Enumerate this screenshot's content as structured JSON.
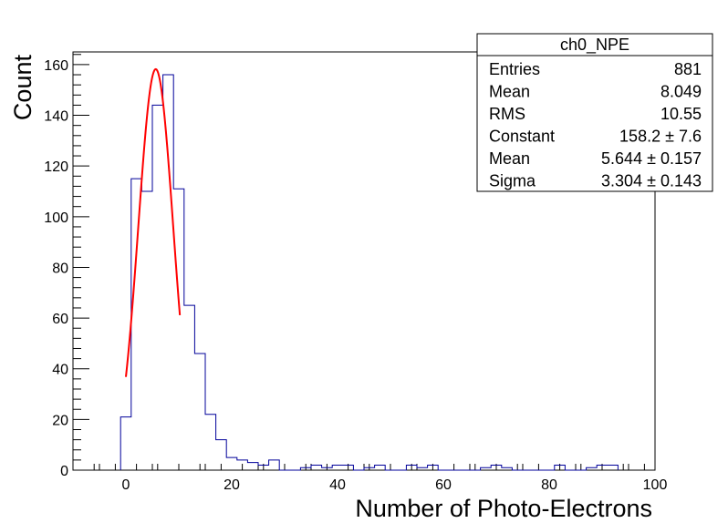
{
  "chart_data": {
    "type": "histogram",
    "xlabel": "Number of Photo-Electrons",
    "ylabel": "Count",
    "xlim": [
      -10,
      100
    ],
    "ylim": [
      0,
      165
    ],
    "x_ticks": [
      "0",
      "20",
      "40",
      "60",
      "80",
      "100"
    ],
    "y_ticks": [
      "0",
      "20",
      "40",
      "60",
      "80",
      "100",
      "120",
      "140",
      "160"
    ],
    "bin_width": 2,
    "bins": [
      {
        "x0": -1,
        "count": 21
      },
      {
        "x0": 1,
        "count": 115
      },
      {
        "x0": 3,
        "count": 110
      },
      {
        "x0": 5,
        "count": 144
      },
      {
        "x0": 7,
        "count": 156
      },
      {
        "x0": 9,
        "count": 111
      },
      {
        "x0": 11,
        "count": 65
      },
      {
        "x0": 13,
        "count": 46
      },
      {
        "x0": 15,
        "count": 22
      },
      {
        "x0": 17,
        "count": 12
      },
      {
        "x0": 19,
        "count": 5
      },
      {
        "x0": 21,
        "count": 4
      },
      {
        "x0": 23,
        "count": 3
      },
      {
        "x0": 25,
        "count": 2
      },
      {
        "x0": 27,
        "count": 4
      },
      {
        "x0": 29,
        "count": 0
      },
      {
        "x0": 31,
        "count": 0
      },
      {
        "x0": 33,
        "count": 1
      },
      {
        "x0": 35,
        "count": 2
      },
      {
        "x0": 37,
        "count": 1
      },
      {
        "x0": 39,
        "count": 2
      },
      {
        "x0": 41,
        "count": 2
      },
      {
        "x0": 43,
        "count": 0
      },
      {
        "x0": 45,
        "count": 1
      },
      {
        "x0": 47,
        "count": 2
      },
      {
        "x0": 49,
        "count": 0
      },
      {
        "x0": 51,
        "count": 0
      },
      {
        "x0": 53,
        "count": 2
      },
      {
        "x0": 55,
        "count": 1
      },
      {
        "x0": 57,
        "count": 2
      },
      {
        "x0": 59,
        "count": 0
      },
      {
        "x0": 61,
        "count": 0
      },
      {
        "x0": 63,
        "count": 0
      },
      {
        "x0": 65,
        "count": 0
      },
      {
        "x0": 67,
        "count": 1
      },
      {
        "x0": 69,
        "count": 2
      },
      {
        "x0": 71,
        "count": 1
      },
      {
        "x0": 73,
        "count": 0
      },
      {
        "x0": 75,
        "count": 0
      },
      {
        "x0": 77,
        "count": 0
      },
      {
        "x0": 79,
        "count": 0
      },
      {
        "x0": 81,
        "count": 2
      },
      {
        "x0": 83,
        "count": 0
      },
      {
        "x0": 85,
        "count": 0
      },
      {
        "x0": 87,
        "count": 1
      },
      {
        "x0": 89,
        "count": 2
      },
      {
        "x0": 91,
        "count": 2
      }
    ],
    "fit": {
      "function": "gaus",
      "constant": 158.2,
      "mean": 5.644,
      "sigma": 3.304,
      "x_range": [
        0,
        10.2
      ]
    },
    "colors": {
      "histogram": "#000099",
      "fit": "#ff0000",
      "frame": "#000000"
    }
  },
  "stats_box": {
    "title": "ch0_NPE",
    "rows": [
      {
        "label": "Entries",
        "value": "881"
      },
      {
        "label": "Mean",
        "value": "8.049"
      },
      {
        "label": "RMS",
        "value": "10.55"
      },
      {
        "label": "Constant",
        "value": "158.2 ± 7.6"
      },
      {
        "label": "Mean",
        "value": "5.644 ± 0.157"
      },
      {
        "label": "Sigma",
        "value": "3.304 ± 0.143"
      }
    ]
  }
}
